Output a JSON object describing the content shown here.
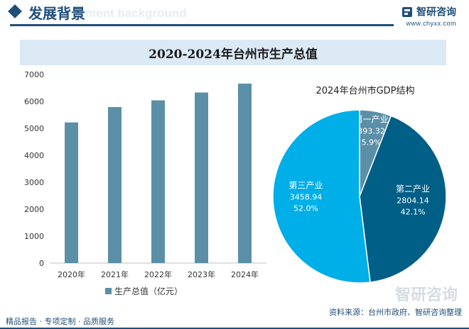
{
  "header": {
    "title": "发展背景",
    "subtitle_en": "ment background",
    "brand_name": "智研咨询",
    "brand_url": "www.chyxx.com"
  },
  "banner": {
    "title": "2020-2024年台州市生产总值"
  },
  "chart_data": [
    {
      "type": "bar",
      "categories": [
        "2020年",
        "2021年",
        "2022年",
        "2023年",
        "2024年"
      ],
      "series": [
        {
          "name": "生产总值（亿元）",
          "values": [
            5220,
            5790,
            6040,
            6330,
            6660
          ]
        }
      ],
      "ylim": [
        0,
        7000
      ],
      "yticks": [
        0,
        1000,
        2000,
        3000,
        4000,
        5000,
        6000,
        7000
      ],
      "legend": "bottom",
      "color": "#5b8fa8"
    },
    {
      "type": "pie",
      "title": "2024年台州市GDP结构",
      "slices": [
        {
          "name": "第一产业",
          "value": 393.32,
          "percent": "5.9%",
          "value_label": "393.32",
          "color": "#5b8fa8"
        },
        {
          "name": "第二产业",
          "value": 2804.14,
          "percent": "42.1%",
          "value_label": "2804.14",
          "color": "#005f87"
        },
        {
          "name": "第三产业",
          "value": 3458.94,
          "percent": "52.0%",
          "value_label": "3458.94",
          "color": "#00aee8"
        }
      ]
    }
  ],
  "footer": {
    "left": "精品报告 · 专项定制 · 品质服务",
    "source": "资料来源：台州市政府、智研咨询整理",
    "watermark": "智研咨询"
  }
}
